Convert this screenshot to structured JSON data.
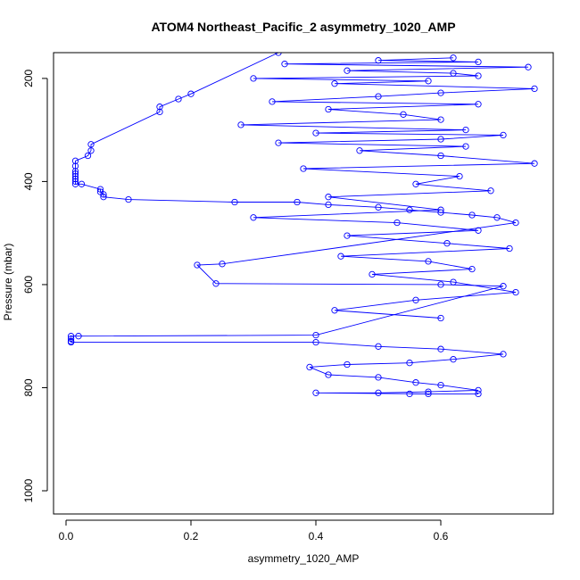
{
  "chart_data": {
    "type": "line",
    "title": "ATOM4 Northeast_Pacific_2 asymmetry_1020_AMP",
    "xlabel": "asymmetry_1020_AMP",
    "ylabel": "Pressure (mbar)",
    "xlim": [
      -0.02,
      0.78
    ],
    "ylim": [
      1045,
      150
    ],
    "y_inverted": true,
    "x_ticks": [
      0.0,
      0.2,
      0.4,
      0.6
    ],
    "x_tick_labels": [
      "0.0",
      "0.2",
      "0.4",
      "0.6"
    ],
    "y_ticks": [
      200,
      400,
      600,
      800,
      1000
    ],
    "y_tick_labels": [
      "200",
      "400",
      "600",
      "800",
      "1000"
    ],
    "grid": false,
    "legend": "none",
    "series_color": "#0000ff",
    "marker": "open-circle",
    "series": [
      {
        "x": [
          0.34,
          0.2,
          0.18,
          0.15,
          0.15,
          0.04,
          0.04,
          0.035,
          0.015,
          0.015,
          0.015,
          0.015,
          0.015,
          0.015,
          0.015,
          0.015,
          0.025,
          0.055,
          0.055,
          0.06,
          0.06,
          0.1,
          0.27,
          0.37,
          0.42,
          0.5,
          0.55,
          0.6,
          0.65,
          0.69,
          0.72,
          0.25,
          0.21,
          0.24,
          0.6,
          0.7,
          0.4,
          0.02,
          0.008,
          0.008,
          0.008,
          0.008,
          0.4,
          0.5,
          0.6,
          0.7,
          0.62,
          0.55,
          0.45,
          0.39,
          0.42,
          0.5,
          0.56,
          0.6,
          0.66,
          0.58,
          0.5,
          0.4,
          0.58,
          0.66,
          0.55
        ],
        "y": [
          150,
          230,
          240,
          255,
          265,
          328,
          340,
          350,
          360,
          370,
          380,
          385,
          390,
          395,
          400,
          405,
          405,
          415,
          420,
          425,
          430,
          435,
          440,
          440,
          445,
          450,
          455,
          460,
          465,
          470,
          480,
          560,
          562,
          598,
          600,
          603,
          698,
          700,
          700,
          705,
          710,
          712,
          712,
          720,
          725,
          735,
          745,
          752,
          755,
          760,
          775,
          780,
          790,
          795,
          805,
          808,
          810,
          810,
          812,
          812,
          812
        ]
      },
      {
        "x": [
          0.62,
          0.5,
          0.66,
          0.35,
          0.74,
          0.45,
          0.62,
          0.66,
          0.3,
          0.58,
          0.43,
          0.75,
          0.6,
          0.5,
          0.33,
          0.66,
          0.42,
          0.54,
          0.6,
          0.28,
          0.64,
          0.4,
          0.7,
          0.6,
          0.34,
          0.64,
          0.47,
          0.6,
          0.75,
          0.38,
          0.63,
          0.56,
          0.68,
          0.42,
          0.6,
          0.3,
          0.53,
          0.66,
          0.45,
          0.61,
          0.71,
          0.44,
          0.58,
          0.65,
          0.49,
          0.62,
          0.72,
          0.56,
          0.43,
          0.6
        ],
        "y": [
          160,
          165,
          168,
          172,
          178,
          185,
          190,
          195,
          200,
          205,
          210,
          220,
          228,
          235,
          245,
          250,
          260,
          270,
          280,
          290,
          300,
          306,
          310,
          318,
          325,
          332,
          340,
          350,
          365,
          375,
          390,
          405,
          418,
          430,
          455,
          470,
          480,
          495,
          505,
          520,
          530,
          545,
          555,
          570,
          580,
          595,
          615,
          630,
          650,
          665
        ]
      }
    ]
  }
}
